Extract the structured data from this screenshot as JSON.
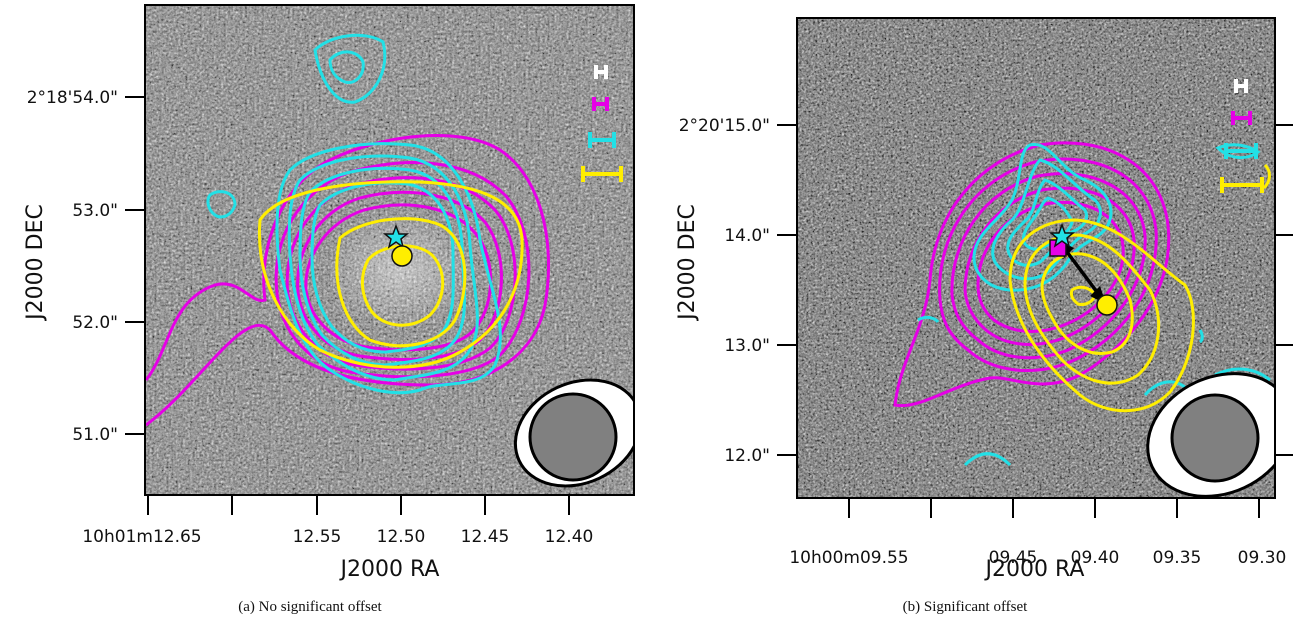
{
  "figure": {
    "panels": [
      {
        "id": "a",
        "caption": "(a) No significant offset",
        "xlabel": "J2000 RA",
        "ylabel": "J2000 DEC",
        "x_ticks": [
          "10h01m12.65",
          "12.55",
          "12.50",
          "12.45",
          "12.40"
        ],
        "y_ticks": [
          "2°18'54.0\"",
          "53.0\"",
          "52.0\"",
          "51.0\""
        ],
        "offset_arrow": false
      },
      {
        "id": "b",
        "caption": "(b) Significant offset",
        "xlabel": "J2000 RA",
        "ylabel": "J2000 DEC",
        "x_ticks": [
          "10h00m09.55",
          "09.45",
          "09.40",
          "09.35",
          "09.30"
        ],
        "y_ticks": [
          "2°20'15.0\"",
          "14.0\"",
          "13.0\"",
          "12.0\""
        ],
        "offset_arrow": true
      }
    ],
    "contour_colors": {
      "magenta": "#e600e6",
      "cyan": "#22e0e6",
      "yellow": "#ffee00",
      "white": "#ffffff"
    },
    "marker_icons": [
      "star-marker",
      "square-marker",
      "circle-marker"
    ]
  }
}
